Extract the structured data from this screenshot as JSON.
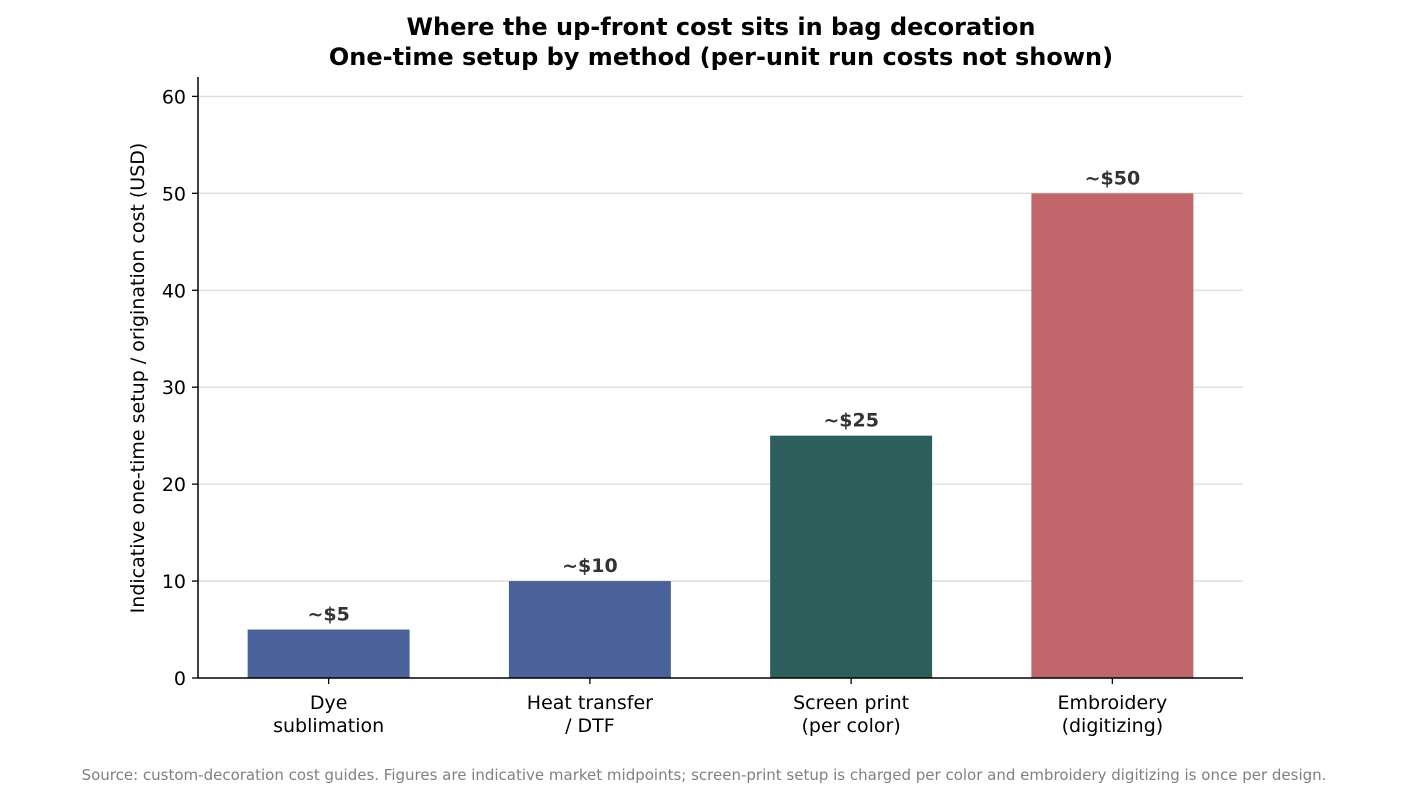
{
  "chart_data": {
    "type": "bar",
    "title": "Where the up-front cost sits in bag decoration",
    "subtitle": "One-time setup by method (per-unit run costs not shown)",
    "xlabel": "",
    "ylabel": "Indicative one-time setup / origination cost (USD)",
    "categories": [
      [
        "Dye",
        "sublimation"
      ],
      [
        "Heat transfer",
        "/ DTF"
      ],
      [
        "Screen print",
        "(per color)"
      ],
      [
        "Embroidery",
        "(digitizing)"
      ]
    ],
    "values": [
      5,
      10,
      25,
      50
    ],
    "value_labels": [
      "~$5",
      "~$10",
      "~$25",
      "~$50"
    ],
    "colors": [
      "#4a6299",
      "#4a6299",
      "#2e5f5c",
      "#c0666a"
    ],
    "ylim": [
      0,
      62
    ],
    "yticks": [
      0,
      10,
      20,
      30,
      40,
      50,
      60
    ],
    "grid": "horizontal",
    "legend": "none"
  },
  "footer": {
    "source": "Source: custom-decoration cost guides. Figures are indicative market midpoints; screen-print setup is charged per color and embroidery digitizing is once per design."
  }
}
